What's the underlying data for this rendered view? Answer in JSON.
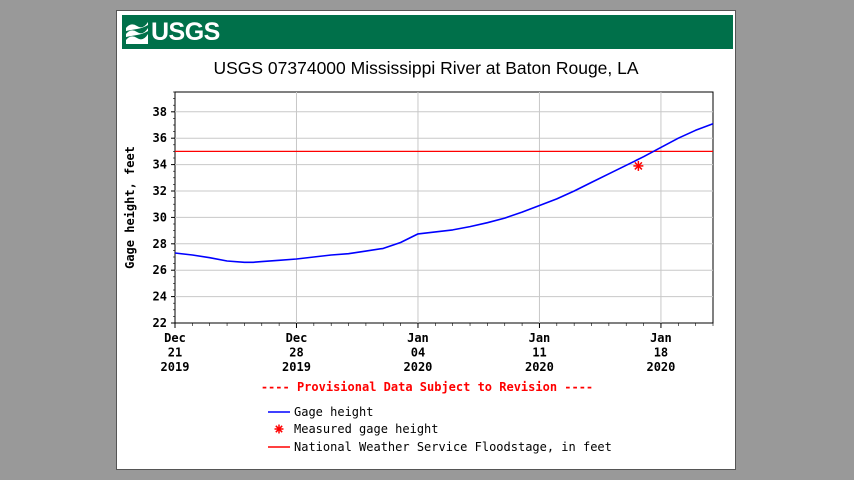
{
  "logo": {
    "text": "USGS"
  },
  "colors": {
    "banner": "#00704a",
    "series": "#0000ff",
    "floodstage": "#ff0000",
    "measured": "#ff0000",
    "provisional": "#ff0000"
  },
  "chart_data": {
    "type": "line",
    "title": "USGS 07374000 Mississippi River at Baton Rouge, LA",
    "ylabel": "Gage height, feet",
    "xlabel": "",
    "xlim": [
      0,
      31
    ],
    "ylim": [
      22,
      39.5
    ],
    "yticks": [
      22,
      24,
      26,
      28,
      30,
      32,
      34,
      36,
      38
    ],
    "xticks": [
      {
        "pos": 0,
        "lines": [
          "Dec",
          "21",
          "2019"
        ]
      },
      {
        "pos": 7,
        "lines": [
          "Dec",
          "28",
          "2019"
        ]
      },
      {
        "pos": 14,
        "lines": [
          "Jan",
          "04",
          "2020"
        ]
      },
      {
        "pos": 21,
        "lines": [
          "Jan",
          "11",
          "2020"
        ]
      },
      {
        "pos": 28,
        "lines": [
          "Jan",
          "18",
          "2020"
        ]
      }
    ],
    "grid": true,
    "series": [
      {
        "name": "Gage height",
        "x": [
          0,
          1,
          2,
          3,
          4,
          4.5,
          5,
          6,
          7,
          8,
          9,
          10,
          11,
          12,
          13,
          14,
          15,
          16,
          17,
          18,
          19,
          20,
          21,
          22,
          23,
          24,
          25,
          26,
          27,
          28,
          29,
          30,
          31
        ],
        "y": [
          27.3,
          27.15,
          26.95,
          26.7,
          26.6,
          26.6,
          26.65,
          26.75,
          26.85,
          27.0,
          27.15,
          27.25,
          27.45,
          27.65,
          28.1,
          28.75,
          28.9,
          29.05,
          29.3,
          29.6,
          29.95,
          30.4,
          30.9,
          31.4,
          32.0,
          32.65,
          33.3,
          33.95,
          34.6,
          35.3,
          36.0,
          36.6,
          37.1
        ]
      }
    ],
    "measured": [
      {
        "x": 26.7,
        "y": 33.9
      }
    ],
    "floodstage": 35.0,
    "provisional_note": "---- Provisional Data Subject to Revision ----",
    "legend": [
      {
        "label": "Gage height",
        "kind": "line"
      },
      {
        "label": "Measured gage height",
        "kind": "star"
      },
      {
        "label": "National Weather Service Floodstage, in feet",
        "kind": "line"
      }
    ]
  }
}
